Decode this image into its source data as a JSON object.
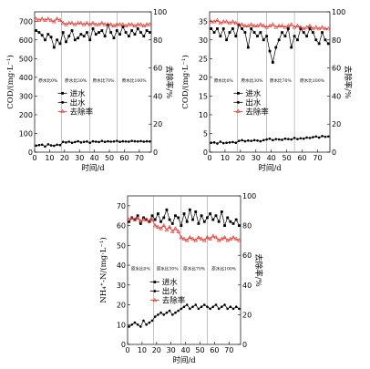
{
  "colors": {
    "influent": "#000000",
    "effluent": "#000000",
    "removal": "#e0302a"
  },
  "chart_data": [
    {
      "type": "line",
      "xlabel": "时间/d",
      "ylabel": "COD/(mg·L⁻¹)",
      "y2label": "去除率/%",
      "xlim": [
        0,
        78
      ],
      "ylim": [
        0,
        750
      ],
      "y2lim": [
        0,
        100
      ],
      "xticks": [
        0,
        10,
        20,
        30,
        40,
        50,
        60,
        70
      ],
      "yticks": [
        0,
        100,
        200,
        300,
        400,
        500,
        600,
        700
      ],
      "y2ticks": [
        0,
        20,
        40,
        60,
        80,
        100
      ],
      "stage_labels": [
        "原水比0%",
        "原水比30%",
        "原水比70%",
        "原水比100%"
      ],
      "stage_boundaries": [
        18,
        37,
        55
      ],
      "legend_position": "center-right",
      "series": [
        {
          "name": "进水",
          "axis": "left",
          "marker": "square",
          "x": [
            1,
            3,
            5,
            7,
            9,
            11,
            13,
            15,
            17,
            19,
            21,
            23,
            25,
            27,
            29,
            31,
            33,
            35,
            37,
            39,
            41,
            43,
            45,
            47,
            49,
            51,
            53,
            55,
            57,
            59,
            61,
            63,
            65,
            67,
            69,
            71,
            73,
            75,
            77
          ],
          "y": [
            650,
            640,
            625,
            600,
            630,
            615,
            560,
            600,
            580,
            640,
            590,
            620,
            650,
            600,
            610,
            630,
            620,
            640,
            600,
            660,
            630,
            640,
            650,
            620,
            680,
            640,
            610,
            650,
            630,
            670,
            640,
            620,
            650,
            630,
            660,
            640,
            620,
            650,
            640
          ]
        },
        {
          "name": "出水",
          "axis": "left",
          "marker": "circle",
          "x": [
            1,
            3,
            5,
            7,
            9,
            11,
            13,
            15,
            17,
            19,
            21,
            23,
            25,
            27,
            29,
            31,
            33,
            35,
            37,
            39,
            41,
            43,
            45,
            47,
            49,
            51,
            53,
            55,
            57,
            59,
            61,
            63,
            65,
            67,
            69,
            71,
            73,
            75,
            77
          ],
          "y": [
            35,
            38,
            40,
            30,
            42,
            36,
            34,
            40,
            38,
            55,
            52,
            56,
            50,
            54,
            58,
            52,
            55,
            57,
            50,
            58,
            56,
            54,
            60,
            55,
            58,
            56,
            57,
            60,
            55,
            58,
            57,
            56,
            60,
            58,
            57,
            59,
            56,
            58,
            57
          ]
        },
        {
          "name": "去除率",
          "axis": "right",
          "marker": "triangle",
          "x": [
            1,
            3,
            5,
            7,
            9,
            11,
            13,
            15,
            17,
            19,
            21,
            23,
            25,
            27,
            29,
            31,
            33,
            35,
            37,
            39,
            41,
            43,
            45,
            47,
            49,
            51,
            53,
            55,
            57,
            59,
            61,
            63,
            65,
            67,
            69,
            71,
            73,
            75,
            77
          ],
          "y": [
            95,
            94,
            95,
            94,
            95,
            94,
            93,
            95,
            94,
            92,
            91,
            92,
            92,
            91,
            92,
            92,
            91,
            92,
            91,
            92,
            91,
            91,
            92,
            91,
            91,
            91,
            90,
            91,
            91,
            91,
            90,
            91,
            91,
            90,
            91,
            91,
            90,
            91,
            91
          ]
        }
      ]
    },
    {
      "type": "line",
      "xlabel": "时间/d",
      "ylabel": "COD/(mg·L⁻¹)",
      "y2label": "去除率/%",
      "xlim": [
        0,
        78
      ],
      "ylim": [
        0,
        37.5
      ],
      "y2lim": [
        0,
        100
      ],
      "xticks": [
        0,
        10,
        20,
        30,
        40,
        50,
        60,
        70
      ],
      "yticks": [
        0,
        5,
        10,
        15,
        20,
        25,
        30,
        35
      ],
      "y2ticks": [
        0,
        20,
        40,
        60,
        80,
        100
      ],
      "stage_labels": [
        "原水比0%",
        "原水比30%",
        "原水比70%",
        "原水比100%"
      ],
      "stage_boundaries": [
        18,
        37,
        55
      ],
      "legend_position": "center-right",
      "series": [
        {
          "name": "进水",
          "axis": "left",
          "marker": "square",
          "x": [
            1,
            3,
            5,
            7,
            9,
            11,
            13,
            15,
            17,
            19,
            21,
            23,
            25,
            27,
            29,
            31,
            33,
            35,
            37,
            39,
            41,
            43,
            45,
            47,
            49,
            51,
            53,
            55,
            57,
            59,
            61,
            63,
            65,
            67,
            69,
            71,
            73,
            75,
            77
          ],
          "y": [
            33,
            32,
            33,
            31,
            33,
            30,
            32,
            33,
            31,
            34,
            33,
            32,
            28,
            33,
            32,
            31,
            32,
            30,
            31,
            27,
            24,
            28,
            30,
            32,
            31,
            33,
            28,
            31,
            30,
            33,
            32,
            31,
            33,
            32,
            30,
            29,
            32,
            30,
            29
          ]
        },
        {
          "name": "出水",
          "axis": "left",
          "marker": "circle",
          "x": [
            1,
            3,
            5,
            7,
            9,
            11,
            13,
            15,
            17,
            19,
            21,
            23,
            25,
            27,
            29,
            31,
            33,
            35,
            37,
            39,
            41,
            43,
            45,
            47,
            49,
            51,
            53,
            55,
            57,
            59,
            61,
            63,
            65,
            67,
            69,
            71,
            73,
            75,
            77
          ],
          "y": [
            2.5,
            2.6,
            2.3,
            2.8,
            2.4,
            2.5,
            2.6,
            2.7,
            2.5,
            3.0,
            3.2,
            2.9,
            3.1,
            3.0,
            3.2,
            3.1,
            2.9,
            3.2,
            3.4,
            3.6,
            3.2,
            3.5,
            3.4,
            3.3,
            3.6,
            3.5,
            3.4,
            3.8,
            3.5,
            3.7,
            3.6,
            3.9,
            3.8,
            4.0,
            4.2,
            3.9,
            4.3,
            4.1,
            4.2
          ]
        },
        {
          "name": "去除率",
          "axis": "right",
          "marker": "triangle",
          "x": [
            1,
            3,
            5,
            7,
            9,
            11,
            13,
            15,
            17,
            19,
            21,
            23,
            25,
            27,
            29,
            31,
            33,
            35,
            37,
            39,
            41,
            43,
            45,
            47,
            49,
            51,
            53,
            55,
            57,
            59,
            61,
            63,
            65,
            67,
            69,
            71,
            73,
            75,
            77
          ],
          "y": [
            93,
            93,
            94,
            92,
            93,
            93,
            92,
            93,
            92,
            91,
            91,
            90,
            90,
            91,
            90,
            90,
            91,
            90,
            89,
            90,
            91,
            89,
            90,
            90,
            89,
            90,
            91,
            89,
            90,
            89,
            88,
            89,
            90,
            88,
            89,
            88,
            89,
            88,
            88
          ]
        }
      ]
    },
    {
      "type": "line",
      "xlabel": "时间/d",
      "ylabel": "NH₄⁺-N/(mg·L⁻¹)",
      "y2label": "去除率/%",
      "xlim": [
        0,
        78
      ],
      "ylim": [
        0,
        75
      ],
      "y2lim": [
        0,
        100
      ],
      "xticks": [
        0,
        10,
        20,
        30,
        40,
        50,
        60,
        70
      ],
      "yticks": [
        0,
        10,
        20,
        30,
        40,
        50,
        60,
        70
      ],
      "y2ticks": [
        0,
        20,
        40,
        60,
        80,
        100
      ],
      "stage_labels": [
        "原水比0%",
        "原水比30%",
        "原水比70%",
        "原水比100%"
      ],
      "stage_boundaries": [
        18,
        37,
        55
      ],
      "legend_position": "center-right",
      "series": [
        {
          "name": "进水",
          "axis": "left",
          "marker": "square",
          "x": [
            1,
            3,
            5,
            7,
            9,
            11,
            13,
            15,
            17,
            19,
            21,
            23,
            25,
            27,
            29,
            31,
            33,
            35,
            37,
            39,
            41,
            43,
            45,
            47,
            49,
            51,
            53,
            55,
            57,
            59,
            61,
            63,
            65,
            67,
            69,
            71,
            73,
            75,
            77
          ],
          "y": [
            62,
            64,
            63,
            65,
            61,
            64,
            63,
            62,
            65,
            63,
            66,
            62,
            64,
            68,
            63,
            61,
            65,
            64,
            60,
            66,
            62,
            68,
            63,
            67,
            61,
            65,
            62,
            64,
            66,
            63,
            65,
            62,
            67,
            60,
            64,
            62,
            61,
            63,
            60
          ]
        },
        {
          "name": "出水",
          "axis": "left",
          "marker": "circle",
          "x": [
            1,
            3,
            5,
            7,
            9,
            11,
            13,
            15,
            17,
            19,
            21,
            23,
            25,
            27,
            29,
            31,
            33,
            35,
            37,
            39,
            41,
            43,
            45,
            47,
            49,
            51,
            53,
            55,
            57,
            59,
            61,
            63,
            65,
            67,
            69,
            71,
            73,
            75,
            77
          ],
          "y": [
            9,
            10,
            11,
            10,
            9,
            12,
            10,
            11,
            12,
            14,
            15,
            16,
            15,
            16,
            17,
            15,
            16,
            17,
            18,
            19,
            20,
            18,
            19,
            20,
            18,
            19,
            20,
            19,
            18,
            19,
            20,
            18,
            19,
            20,
            18,
            19,
            18,
            19,
            18
          ]
        },
        {
          "name": "去除率",
          "axis": "right",
          "marker": "triangle",
          "x": [
            1,
            3,
            5,
            7,
            9,
            11,
            13,
            15,
            17,
            19,
            21,
            23,
            25,
            27,
            29,
            31,
            33,
            35,
            37,
            39,
            41,
            43,
            45,
            47,
            49,
            51,
            53,
            55,
            57,
            59,
            61,
            63,
            65,
            67,
            69,
            71,
            73,
            75,
            77
          ],
          "y": [
            84,
            85,
            84,
            85,
            83,
            84,
            84,
            83,
            84,
            80,
            79,
            78,
            80,
            77,
            79,
            76,
            78,
            76,
            72,
            71,
            70,
            72,
            71,
            70,
            72,
            71,
            70,
            72,
            71,
            73,
            72,
            70,
            71,
            72,
            70,
            71,
            72,
            71,
            70
          ]
        }
      ]
    }
  ]
}
